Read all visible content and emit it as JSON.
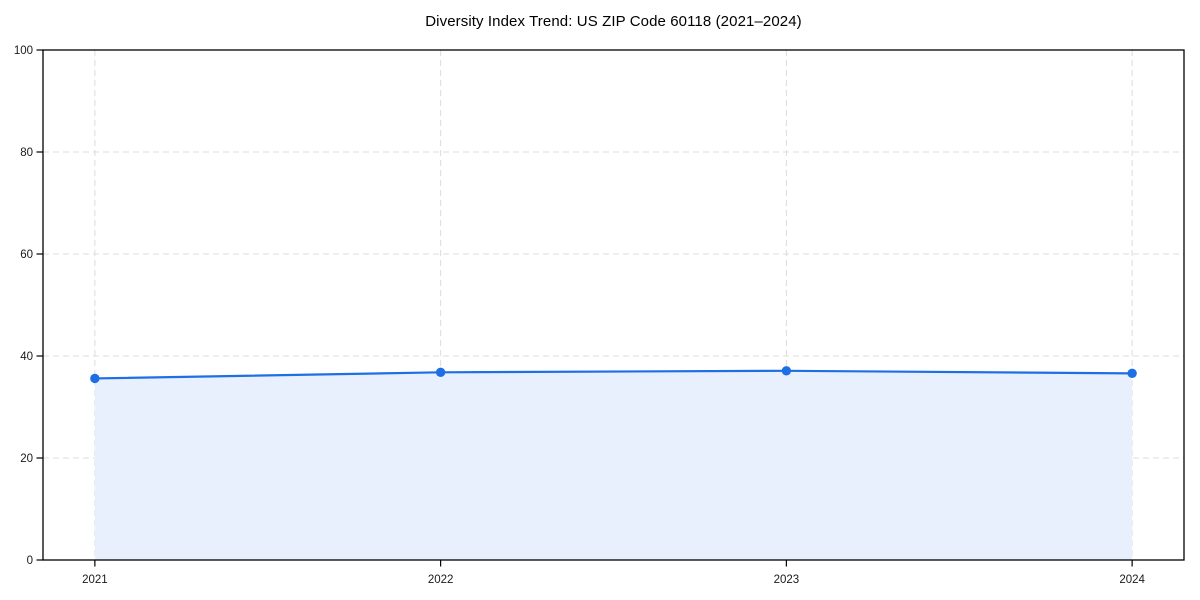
{
  "chart_data": {
    "type": "area",
    "title": "Diversity Index Trend: US ZIP Code 60118 (2021–2024)",
    "x": [
      2021,
      2022,
      2023,
      2024
    ],
    "x_tick_labels": [
      "2021",
      "2022",
      "2023",
      "2024"
    ],
    "y_ticks": [
      0,
      20,
      40,
      60,
      80,
      100
    ],
    "y_tick_labels": [
      "0",
      "20",
      "40",
      "60",
      "80",
      "100"
    ],
    "series": [
      {
        "name": "Diversity Index",
        "values": [
          35.6,
          36.8,
          37.1,
          36.6
        ]
      }
    ],
    "xlabel": "",
    "ylabel": "",
    "xlim": [
      2020.85,
      2024.15
    ],
    "ylim": [
      0,
      100
    ],
    "grid": true,
    "grid_style": "dashed",
    "legend": false,
    "markers": true,
    "colors": {
      "line": "#1e6ee6",
      "marker": "#1e6ee6",
      "area_fill": "#e9f0fd",
      "grid": "#dcdcdc",
      "spine": "#000000",
      "tick_label": "#1a1a1a",
      "title": "#000000",
      "background": "#ffffff"
    }
  }
}
